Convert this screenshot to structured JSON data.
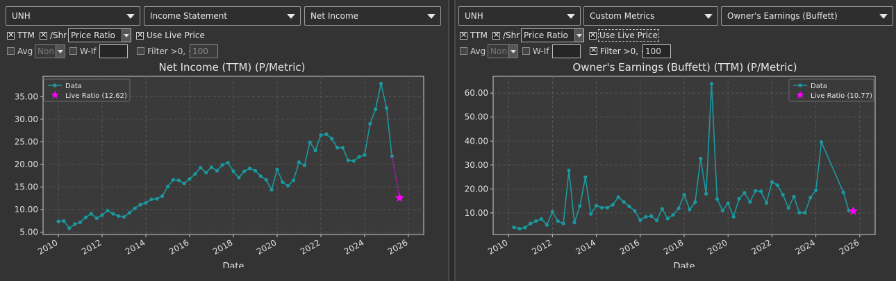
{
  "left": {
    "ticker": "UNH",
    "statement": "Income Statement",
    "metric": "Net Income",
    "ttm_label": "TTM",
    "pershr_label": "/Shr",
    "ratio_mode": "Price Ratio",
    "live_price_label": "Use Live Price",
    "avg_label": "Avg",
    "avg_select": "Non",
    "wif_label": "W-If",
    "wif_value": "",
    "filter_label": "Filter >0, <",
    "filter_value": "100",
    "checks": {
      "ttm": true,
      "pershr": true,
      "live": true,
      "avg": false,
      "wif": false,
      "filter": false
    }
  },
  "right": {
    "ticker": "UNH",
    "statement": "Custom Metrics",
    "metric": "Owner's Earnings (Buffett)",
    "ttm_label": "TTM",
    "pershr_label": "/Shr",
    "ratio_mode": "Price Ratio",
    "live_price_label": "Use Live Price",
    "avg_label": "Avg",
    "avg_select": "Non",
    "wif_label": "W-If",
    "wif_value": "",
    "filter_label": "Filter >0, <",
    "filter_value": "100",
    "checks": {
      "ttm": true,
      "pershr": true,
      "live": true,
      "avg": false,
      "wif": false,
      "filter": true
    }
  },
  "colors": {
    "series": "#1a9aa0",
    "live": "#ff00ff",
    "plot_bg": "#3a3a3a",
    "grid": "#5c5c5c"
  },
  "chart_data": [
    {
      "type": "line",
      "title": "Net Income (TTM) (P/Metric)",
      "xlabel": "Date",
      "ylabel": "",
      "xlim": [
        2009.3,
        2026.7
      ],
      "ylim": [
        4.5,
        39.5
      ],
      "xticks": [
        2010,
        2012,
        2014,
        2016,
        2018,
        2020,
        2022,
        2024,
        2026
      ],
      "yticks": [
        5,
        10,
        15,
        20,
        25,
        30,
        35
      ],
      "ytick_labels": [
        "5.00",
        "10.00",
        "15.00",
        "20.00",
        "25.00",
        "30.00",
        "35.00"
      ],
      "grid": true,
      "legend": "top-left",
      "series": [
        {
          "name": "Data",
          "x": [
            2010.0,
            2010.25,
            2010.5,
            2010.75,
            2011.0,
            2011.25,
            2011.5,
            2011.75,
            2012.0,
            2012.25,
            2012.5,
            2012.75,
            2013.0,
            2013.25,
            2013.5,
            2013.75,
            2014.0,
            2014.25,
            2014.5,
            2014.75,
            2015.0,
            2015.25,
            2015.5,
            2015.75,
            2016.0,
            2016.25,
            2016.5,
            2016.75,
            2017.0,
            2017.25,
            2017.5,
            2017.75,
            2018.0,
            2018.25,
            2018.5,
            2018.75,
            2019.0,
            2019.25,
            2019.5,
            2019.75,
            2020.0,
            2020.25,
            2020.5,
            2020.75,
            2021.0,
            2021.25,
            2021.5,
            2021.75,
            2022.0,
            2022.25,
            2022.5,
            2022.75,
            2023.0,
            2023.25,
            2023.5,
            2023.75,
            2024.0,
            2024.25,
            2024.5,
            2024.75,
            2025.0,
            2025.25
          ],
          "y": [
            7.4,
            7.5,
            5.9,
            6.8,
            7.2,
            8.3,
            9.1,
            8.1,
            8.8,
            9.8,
            9.1,
            8.6,
            8.4,
            9.3,
            10.3,
            11.1,
            11.5,
            12.3,
            12.4,
            13.0,
            15.1,
            16.6,
            16.5,
            15.8,
            16.8,
            17.9,
            19.3,
            18.2,
            19.4,
            18.6,
            19.9,
            20.4,
            18.5,
            17.1,
            18.5,
            19.1,
            18.6,
            17.4,
            16.6,
            14.4,
            18.9,
            16.1,
            15.3,
            16.5,
            20.5,
            19.8,
            24.9,
            23.1,
            26.5,
            26.7,
            25.7,
            23.7,
            23.7,
            20.9,
            20.8,
            21.7,
            22.1,
            29.0,
            32.2,
            37.9,
            32.5,
            21.8
          ]
        },
        {
          "name": "Live Ratio (12.62)",
          "x": [
            2025.6
          ],
          "y": [
            12.62
          ]
        }
      ]
    },
    {
      "type": "line",
      "title": "Owner's Earnings (Buffett) (TTM) (P/Metric)",
      "xlabel": "Date",
      "ylabel": "",
      "xlim": [
        2009.3,
        2026.7
      ],
      "ylim": [
        1.0,
        67.0
      ],
      "xticks": [
        2010,
        2012,
        2014,
        2016,
        2018,
        2020,
        2022,
        2024,
        2026
      ],
      "yticks": [
        10,
        20,
        30,
        40,
        50,
        60
      ],
      "ytick_labels": [
        "10.00",
        "20.00",
        "30.00",
        "40.00",
        "50.00",
        "60.00"
      ],
      "grid": true,
      "legend": "top-right",
      "series": [
        {
          "name": "Data",
          "x": [
            2010.25,
            2010.5,
            2010.75,
            2011.0,
            2011.25,
            2011.5,
            2011.75,
            2012.0,
            2012.25,
            2012.5,
            2012.75,
            2013.0,
            2013.25,
            2013.5,
            2013.75,
            2014.0,
            2014.25,
            2014.5,
            2014.75,
            2015.0,
            2015.25,
            2015.5,
            2015.75,
            2016.0,
            2016.25,
            2016.5,
            2016.75,
            2017.0,
            2017.25,
            2017.5,
            2017.75,
            2018.0,
            2018.25,
            2018.5,
            2018.75,
            2019.0,
            2019.25,
            2019.5,
            2019.75,
            2020.0,
            2020.25,
            2020.5,
            2020.75,
            2021.0,
            2021.25,
            2021.5,
            2021.75,
            2022.0,
            2022.25,
            2022.5,
            2022.75,
            2023.0,
            2023.25,
            2023.5,
            2023.75,
            2024.0,
            2024.25,
            2025.25,
            2025.5
          ],
          "y": [
            4.0,
            3.4,
            3.9,
            5.6,
            6.6,
            7.5,
            5.0,
            10.5,
            6.6,
            5.6,
            27.7,
            6.0,
            12.9,
            24.9,
            9.6,
            13.1,
            12.2,
            12.2,
            13.4,
            16.6,
            14.6,
            12.7,
            10.9,
            7.0,
            8.4,
            8.7,
            6.9,
            11.7,
            7.7,
            9.2,
            11.9,
            17.6,
            11.4,
            14.5,
            32.7,
            18.0,
            63.9,
            15.8,
            11.0,
            14.0,
            8.4,
            15.9,
            18.4,
            14.6,
            19.2,
            19.0,
            14.2,
            22.9,
            21.6,
            17.6,
            12.1,
            16.8,
            10.1,
            10.1,
            16.4,
            19.5,
            39.6,
            18.6,
            11.0
          ]
        },
        {
          "name": "Live Ratio (10.77)",
          "x": [
            2025.7
          ],
          "y": [
            10.77
          ]
        }
      ]
    }
  ]
}
